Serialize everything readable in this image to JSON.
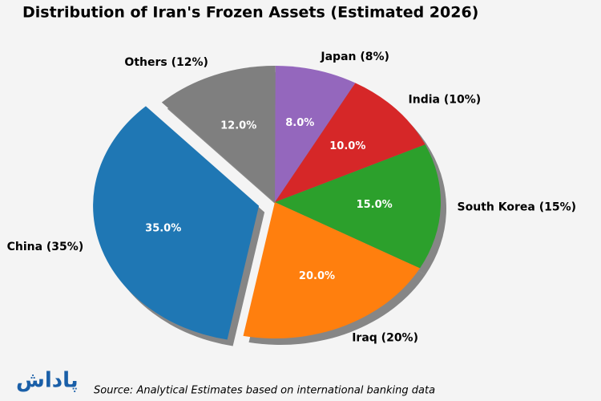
{
  "chart_data": {
    "type": "pie",
    "title": "Distribution of Iran's Frozen Assets (Estimated 2026)",
    "categories": [
      "China (35%)",
      "Iraq (20%)",
      "South Korea (15%)",
      "India (10%)",
      "Japan (8%)",
      "Others (12%)"
    ],
    "values": [
      35,
      20,
      15,
      10,
      8,
      12
    ],
    "value_labels": [
      "35.0%",
      "20.0%",
      "15.0%",
      "10.0%",
      "8.0%",
      "12.0%"
    ],
    "colors": [
      "#1f77b4",
      "#ff7f0e",
      "#2ca02c",
      "#d62728",
      "#9467bd",
      "#7f7f7f"
    ],
    "source": "Source: Analytical Estimates based on international banking data",
    "logo": "پاداش"
  }
}
